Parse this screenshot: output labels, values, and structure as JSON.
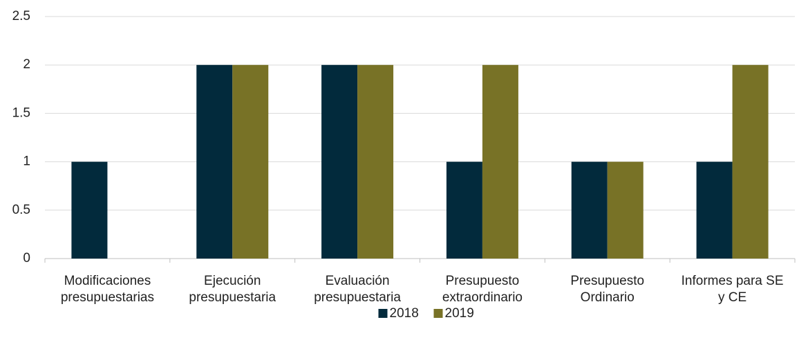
{
  "chart_data": {
    "type": "bar",
    "categories": [
      "Modificaciones\npresupuestarias",
      "Ejecución\npresupuestaria",
      "Evaluación\npresupuestaria",
      "Presupuesto\nextraordinario",
      "Presupuesto\nOrdinario",
      "Informes para SE\ny CE"
    ],
    "series": [
      {
        "name": "2018",
        "color": "#022a3c",
        "values": [
          1,
          2,
          2,
          1,
          1,
          1
        ]
      },
      {
        "name": "2019",
        "color": "#787226",
        "values": [
          0,
          2,
          2,
          2,
          1,
          2
        ]
      }
    ],
    "ylim": [
      0,
      2.5
    ],
    "yticks": [
      0,
      0.5,
      1,
      1.5,
      2,
      2.5
    ],
    "grid": true,
    "legend": "bottom"
  }
}
